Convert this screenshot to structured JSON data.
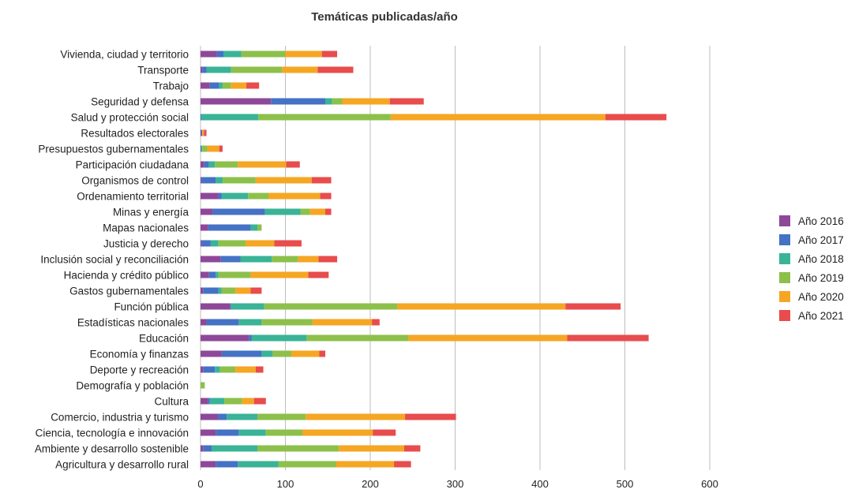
{
  "chart_data": {
    "type": "bar",
    "orientation": "horizontal",
    "stacked": true,
    "title": "Temáticas publicadas/año",
    "xlabel": "",
    "ylabel": "",
    "xlim": [
      0,
      600
    ],
    "xticks": [
      0,
      100,
      200,
      300,
      400,
      500,
      600
    ],
    "grid": true,
    "legend_position": "right",
    "categories": [
      "Vivienda, ciudad y territorio",
      "Transporte",
      "Trabajo",
      "Seguridad y defensa",
      "Salud y protección social",
      "Resultados electorales",
      "Presupuestos gubernamentales",
      "Participación ciudadana",
      "Organismos de control",
      "Ordenamiento territorial",
      "Minas y energía",
      "Mapas nacionales",
      "Justicia y derecho",
      "Inclusión social y reconciliación",
      "Hacienda y crédito público",
      "Gastos gubernamentales",
      "Función pública",
      "Estadísticas nacionales",
      "Educación",
      "Economía y finanzas",
      "Deporte y recreación",
      "Demografía y población",
      "Cultura",
      "Comercio, industria y turismo",
      "Ciencia, tecnología e innovación",
      "Ambiente y desarrollo sostenible",
      "Agricultura y desarrollo rural"
    ],
    "series": [
      {
        "name": "Año 2016",
        "color": "#8e4899",
        "values": [
          19,
          2,
          11,
          83,
          0,
          1,
          0,
          4,
          1,
          21,
          14,
          9,
          1,
          24,
          10,
          3,
          35,
          7,
          57,
          25,
          3,
          0,
          9,
          21,
          18,
          3,
          18
        ]
      },
      {
        "name": "Año 2017",
        "color": "#4472c4",
        "values": [
          8,
          5,
          11,
          64,
          1,
          1,
          1,
          6,
          17,
          4,
          62,
          50,
          11,
          23,
          8,
          18,
          1,
          38,
          3,
          47,
          14,
          0,
          2,
          10,
          27,
          10,
          26
        ]
      },
      {
        "name": "Año 2018",
        "color": "#3ab397",
        "values": [
          21,
          29,
          4,
          8,
          67,
          0,
          1,
          7,
          8,
          31,
          42,
          8,
          9,
          37,
          3,
          4,
          39,
          27,
          65,
          13,
          6,
          0,
          17,
          36,
          32,
          54,
          48
        ]
      },
      {
        "name": "Año 2019",
        "color": "#8dc04b",
        "values": [
          52,
          60,
          10,
          12,
          156,
          0,
          6,
          27,
          39,
          24,
          11,
          5,
          32,
          31,
          38,
          16,
          157,
          60,
          120,
          22,
          18,
          5,
          21,
          57,
          43,
          96,
          68
        ]
      },
      {
        "name": "Año 2020",
        "color": "#f5a623",
        "values": [
          43,
          42,
          18,
          56,
          253,
          2,
          14,
          57,
          66,
          61,
          18,
          0,
          34,
          24,
          68,
          18,
          198,
          70,
          187,
          33,
          24,
          0,
          14,
          117,
          83,
          77,
          68
        ]
      },
      {
        "name": "Año 2021",
        "color": "#e84c4c",
        "values": [
          18,
          42,
          15,
          40,
          72,
          3,
          4,
          16,
          23,
          13,
          7,
          0,
          32,
          22,
          24,
          13,
          65,
          9,
          96,
          7,
          9,
          0,
          14,
          60,
          27,
          19,
          20
        ]
      }
    ]
  }
}
